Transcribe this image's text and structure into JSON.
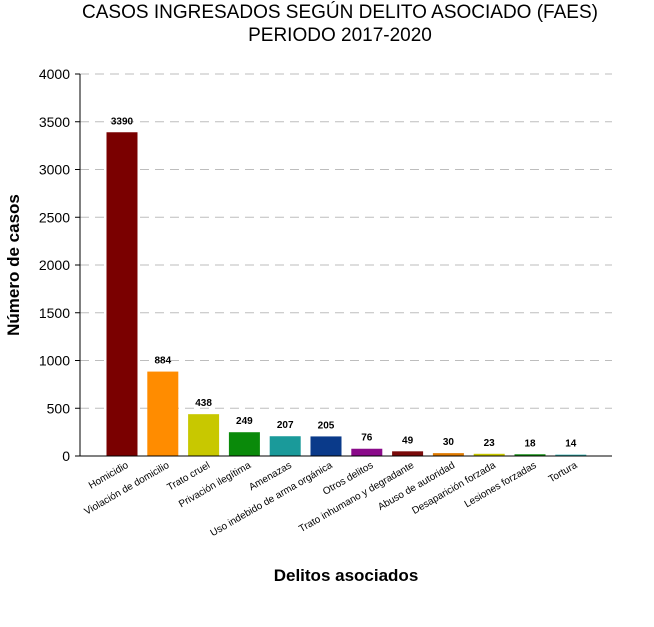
{
  "chart_data": {
    "type": "bar",
    "title": [
      "CASOS INGRESADOS SEGÚN DELITO ASOCIADO (FAES)",
      "PERIODO 2017-2020"
    ],
    "xlabel": "Delitos asociados",
    "ylabel": "Número de casos",
    "ylim": [
      0,
      4000
    ],
    "yticks": [
      "0",
      "500",
      "1000",
      "1500",
      "2000",
      "2500",
      "3000",
      "3500",
      "4000"
    ],
    "grid": "horizontal-dashed",
    "categories": [
      "Homicidio",
      "Violación de domicilio",
      "Trato cruel",
      "Privación ilegítima",
      "Amenazas",
      "Uso indebido de arma orgánica",
      "Otros delitos",
      "Trato inhumano y degradante",
      "Abuso de autoridad",
      "Desaparición forzada",
      "Lesiones forzadas",
      "Tortura"
    ],
    "values": [
      3390,
      884,
      438,
      249,
      207,
      205,
      76,
      49,
      30,
      23,
      18,
      14
    ],
    "data_labels": [
      "3390",
      "884",
      "438",
      "249",
      "207",
      "205",
      "76",
      "49",
      "30",
      "23",
      "18",
      "14"
    ],
    "colors": [
      "#7a0000",
      "#ff8c00",
      "#c8c800",
      "#0a8a0a",
      "#1a9a9a",
      "#0a3a8a",
      "#8a0a8a",
      "#7a0a0a",
      "#e07a00",
      "#c8c800",
      "#0a8a0a",
      "#2aaaaa"
    ]
  }
}
